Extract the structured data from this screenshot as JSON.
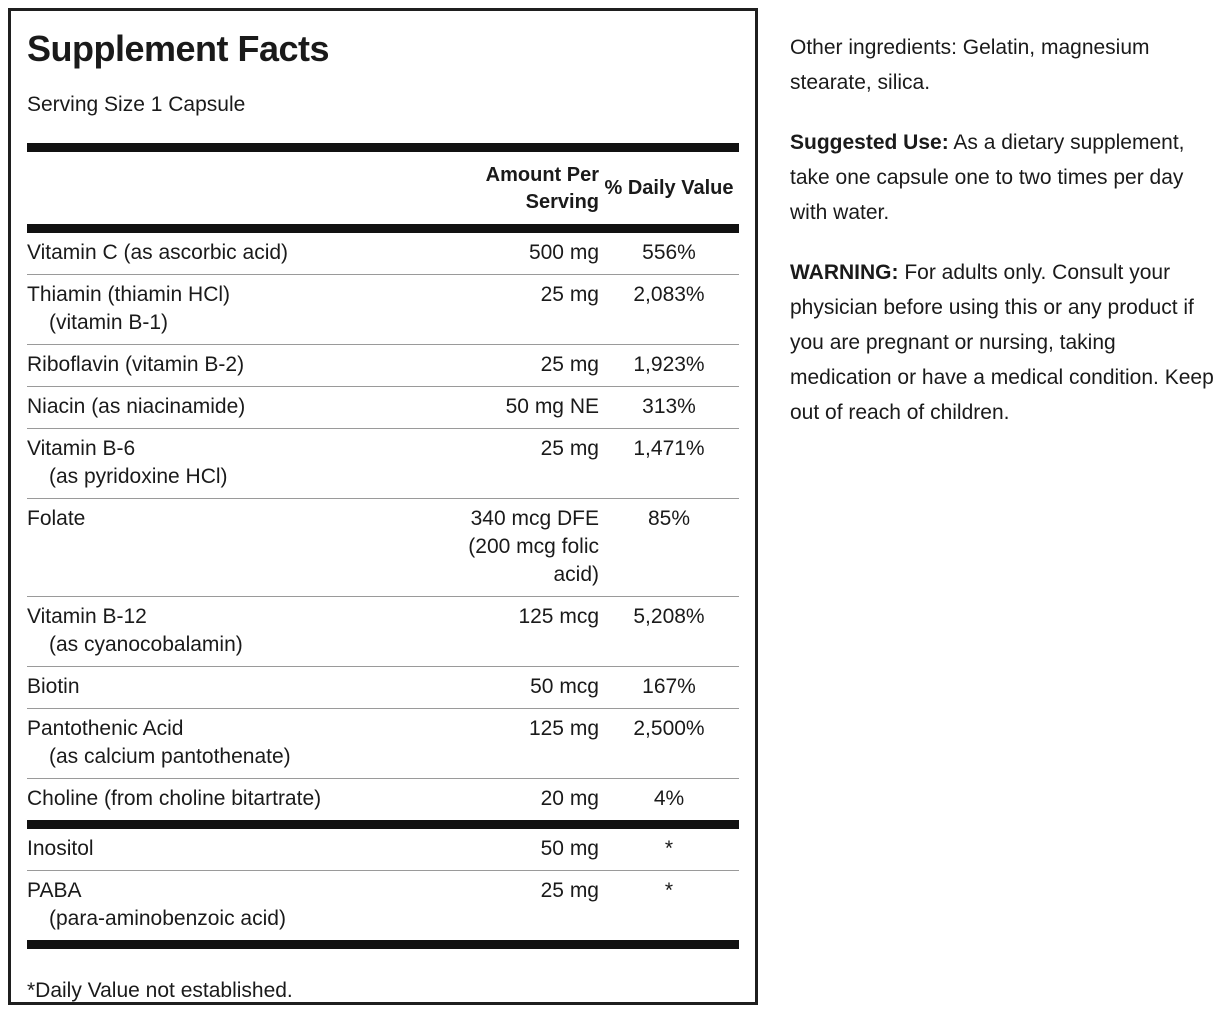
{
  "panel": {
    "title": "Supplement Facts",
    "serving_size": "Serving Size 1 Capsule",
    "header": {
      "amount_line1": "Amount Per",
      "amount_line2": "Serving",
      "daily_value": "% Daily Value"
    },
    "rows": [
      {
        "name": "Vitamin C (as ascorbic acid)",
        "amount": "500 mg",
        "dv": "556%"
      },
      {
        "name": "Thiamin (thiamin HCl)",
        "sub": "(vitamin B-1)",
        "amount": "25 mg",
        "dv": "2,083%"
      },
      {
        "name": "Riboflavin (vitamin B-2)",
        "amount": "25 mg",
        "dv": "1,923%"
      },
      {
        "name": "Niacin (as niacinamide)",
        "amount": "50 mg NE",
        "dv": "313%"
      },
      {
        "name": "Vitamin B-6",
        "sub": "(as pyridoxine HCl)",
        "amount": "25 mg",
        "dv": "1,471%"
      },
      {
        "name": "Folate",
        "amount": "340 mcg DFE (200 mcg folic acid)",
        "dv": "85%"
      },
      {
        "name": "Vitamin B-12",
        "sub": "(as cyanocobalamin)",
        "amount": "125 mcg",
        "dv": "5,208%"
      },
      {
        "name": "Biotin",
        "amount": "50 mcg",
        "dv": "167%"
      },
      {
        "name": "Pantothenic Acid",
        "sub": "(as calcium pantothenate)",
        "amount": "125 mg",
        "dv": "2,500%"
      },
      {
        "name": "Choline (from choline bitartrate)",
        "amount": "20 mg",
        "dv": "4%"
      }
    ],
    "secondary_rows": [
      {
        "name": "Inositol",
        "amount": "50 mg",
        "dv": "*"
      },
      {
        "name": "PABA",
        "sub": "(para-aminobenzoic acid)",
        "amount": "25 mg",
        "dv": "*"
      }
    ],
    "footnote": "*Daily Value not established."
  },
  "info": {
    "other_ingredients": "Other ingredients: Gelatin, magnesium stearate, silica.",
    "suggested_use_label": "Suggested Use:",
    "suggested_use_text": " As a dietary supplement, take one capsule one to two times per day with water.",
    "warning_label": "WARNING:",
    "warning_text": " For adults only. Consult your physician before using this or any product if you are pregnant or nursing, taking medication or have a medical condition. Keep out of reach of children."
  },
  "colors": {
    "text": "#1a1a1a",
    "bar": "#111111",
    "separator": "#9a9a9a",
    "background": "#ffffff"
  }
}
